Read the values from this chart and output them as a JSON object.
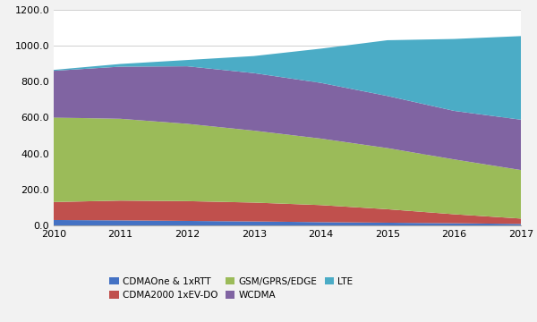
{
  "years": [
    2010,
    2011,
    2012,
    2013,
    2014,
    2015,
    2016,
    2017
  ],
  "cdmaone": [
    30,
    28,
    25,
    22,
    18,
    15,
    12,
    8
  ],
  "cdma2000": [
    100,
    110,
    110,
    105,
    95,
    75,
    50,
    30
  ],
  "gsm": [
    470,
    455,
    430,
    400,
    370,
    340,
    305,
    270
  ],
  "wcdma": [
    260,
    290,
    320,
    320,
    310,
    290,
    270,
    280
  ],
  "lte": [
    5,
    15,
    35,
    95,
    190,
    310,
    400,
    465
  ],
  "colors": {
    "cdmaone": "#4472c4",
    "cdma2000": "#c0504d",
    "gsm": "#9bbb59",
    "wcdma": "#8064a2",
    "lte": "#4bacc6"
  },
  "legend_labels": [
    "CDMAOne & 1xRTT",
    "CDMA2000 1xEV-DO",
    "GSM/GPRS/EDGE",
    "WCDMA",
    "LTE"
  ],
  "ylim": [
    0,
    1200
  ],
  "yticks": [
    0,
    200,
    400,
    600,
    800,
    1000,
    1200
  ],
  "ytick_labels": [
    "0.0",
    "200.0",
    "400.0",
    "600.0",
    "800.0",
    "1000.0",
    "1200.0"
  ],
  "bg_color": "#f2f2f2",
  "plot_bg_color": "#ffffff"
}
